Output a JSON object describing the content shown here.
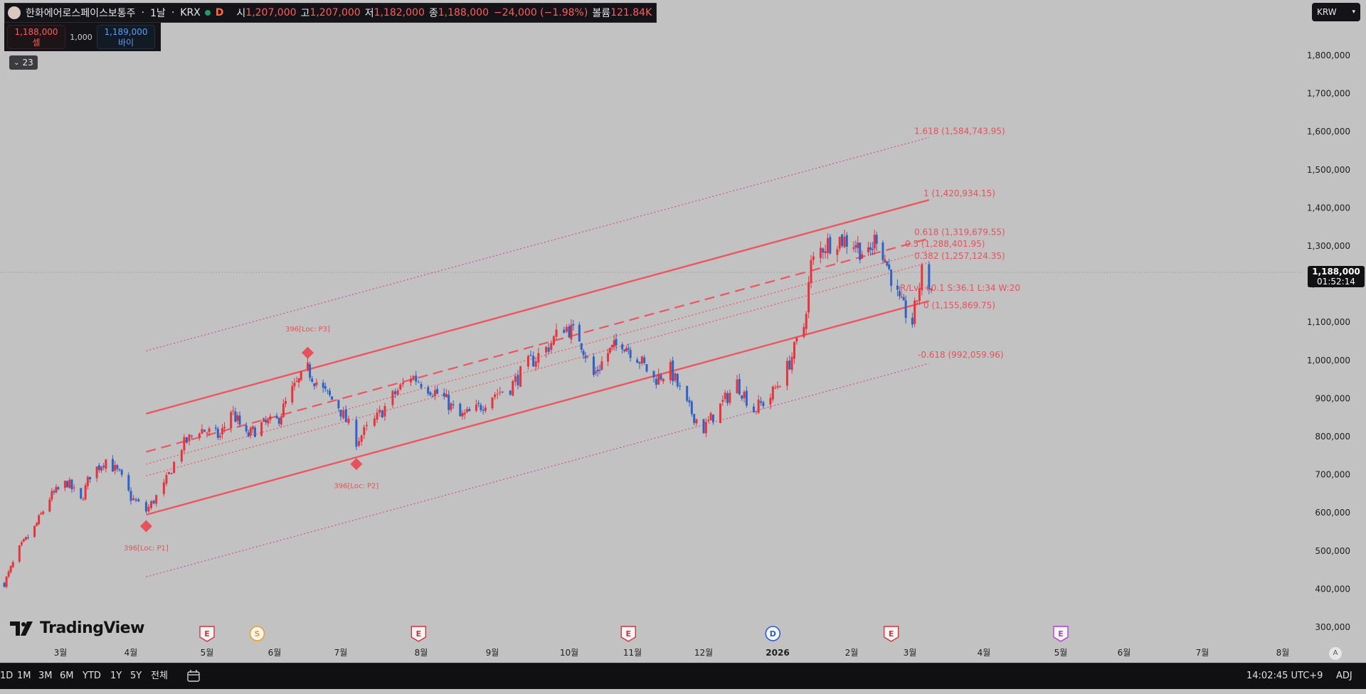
{
  "legend": {
    "symbol": "한화에어로스페이스보통주",
    "interval": "1날",
    "exchange": "KRX",
    "badge": "D",
    "open_label": "시",
    "open": "1,207,000",
    "high_label": "고",
    "high": "1,207,000",
    "low_label": "저",
    "low": "1,182,000",
    "close_label": "종",
    "close": "1,188,000",
    "change": "−24,000 (−1.98%)",
    "volume_label": "볼륨",
    "volume": "121.84K"
  },
  "trade": {
    "sell_price": "1,188,000",
    "sell_label": "셀",
    "spread": "1,000",
    "buy_price": "1,189,000",
    "buy_label": "바이"
  },
  "indicators_collapsed": "23",
  "currency": "KRW",
  "last_price": {
    "value": "1,188,000",
    "countdown": "01:52:14"
  },
  "brand": "TradingView",
  "bottom_bar": {
    "periods": [
      "1D",
      "1M",
      "3M",
      "6M",
      "YTD",
      "1Y",
      "5Y",
      "전체"
    ],
    "clock": "14:02:45 UTC+9",
    "adj": "ADJ",
    "auto": "A"
  },
  "colors": {
    "up": "#e8323c",
    "down": "#2e62c8",
    "channel": "#ef5560",
    "fib_text": "#e8505a",
    "background": "#c2c2c2",
    "marker": "#e8505a"
  },
  "chart_data": {
    "type": "candlestick",
    "symbol": "한화에어로스페이스보통주",
    "ylim": [
      250000,
      1900000
    ],
    "y_ticks": [
      300000,
      400000,
      500000,
      600000,
      700000,
      800000,
      900000,
      1000000,
      1100000,
      1200000,
      1300000,
      1400000,
      1500000,
      1600000,
      1700000,
      1800000
    ],
    "y_tick_labels": [
      "300,000",
      "400,000",
      "500,000",
      "600,000",
      "700,000",
      "800,000",
      "900,000",
      "1,000,000",
      "1,100,000",
      "1,200,000",
      "1,300,000",
      "1,400,000",
      "1,500,000",
      "1,600,000",
      "1,700,000",
      "1,800,000"
    ],
    "x_labels": [
      "3월",
      "4월",
      "5월",
      "6월",
      "7월",
      "8월",
      "9월",
      "10월",
      "11월",
      "12월",
      "2026",
      "2월",
      "3월",
      "4월",
      "5월",
      "6월",
      "7월",
      "8월"
    ],
    "x_label_dates": [
      "2025-03-01",
      "2025-04-01",
      "2025-05-01",
      "2025-06-01",
      "2025-07-01",
      "2025-08-01",
      "2025-09-01",
      "2025-10-01",
      "2025-11-01",
      "2025-12-01",
      "2026-01-01",
      "2026-02-01",
      "2026-03-01",
      "2026-04-01",
      "2026-05-01",
      "2026-06-01",
      "2026-07-01",
      "2026-08-01"
    ],
    "x_range": [
      "2025-02-03",
      "2026-08-28"
    ],
    "last_close": 1188000,
    "close_path": [
      {
        "date": "2025-02-03",
        "close": 415000
      },
      {
        "date": "2025-02-10",
        "close": 505000
      },
      {
        "date": "2025-02-17",
        "close": 560000
      },
      {
        "date": "2025-02-24",
        "close": 640000
      },
      {
        "date": "2025-03-04",
        "close": 680000
      },
      {
        "date": "2025-03-10",
        "close": 630000
      },
      {
        "date": "2025-03-14",
        "close": 700000
      },
      {
        "date": "2025-03-21",
        "close": 740000
      },
      {
        "date": "2025-03-27",
        "close": 700000
      },
      {
        "date": "2025-04-01",
        "close": 640000
      },
      {
        "date": "2025-04-07",
        "close": 605000
      },
      {
        "date": "2025-04-14",
        "close": 670000
      },
      {
        "date": "2025-04-21",
        "close": 775000
      },
      {
        "date": "2025-04-28",
        "close": 820000
      },
      {
        "date": "2025-05-07",
        "close": 800000
      },
      {
        "date": "2025-05-12",
        "close": 870000
      },
      {
        "date": "2025-05-19",
        "close": 800000
      },
      {
        "date": "2025-05-26",
        "close": 830000
      },
      {
        "date": "2025-06-02",
        "close": 840000
      },
      {
        "date": "2025-06-09",
        "close": 920000
      },
      {
        "date": "2025-06-16",
        "close": 975000
      },
      {
        "date": "2025-06-23",
        "close": 920000
      },
      {
        "date": "2025-06-30",
        "close": 880000
      },
      {
        "date": "2025-07-07",
        "close": 790000
      },
      {
        "date": "2025-07-14",
        "close": 840000
      },
      {
        "date": "2025-07-21",
        "close": 905000
      },
      {
        "date": "2025-07-28",
        "close": 960000
      },
      {
        "date": "2025-08-04",
        "close": 930000
      },
      {
        "date": "2025-08-11",
        "close": 900000
      },
      {
        "date": "2025-08-18",
        "close": 850000
      },
      {
        "date": "2025-08-25",
        "close": 870000
      },
      {
        "date": "2025-09-01",
        "close": 910000
      },
      {
        "date": "2025-09-08",
        "close": 930000
      },
      {
        "date": "2025-09-15",
        "close": 990000
      },
      {
        "date": "2025-09-22",
        "close": 1030000
      },
      {
        "date": "2025-09-29",
        "close": 1090000
      },
      {
        "date": "2025-10-06",
        "close": 1060000
      },
      {
        "date": "2025-10-13",
        "close": 960000
      },
      {
        "date": "2025-10-20",
        "close": 1020000
      },
      {
        "date": "2025-10-27",
        "close": 1050000
      },
      {
        "date": "2025-11-03",
        "close": 1010000
      },
      {
        "date": "2025-11-10",
        "close": 950000
      },
      {
        "date": "2025-11-17",
        "close": 975000
      },
      {
        "date": "2025-11-24",
        "close": 880000
      },
      {
        "date": "2025-12-01",
        "close": 820000
      },
      {
        "date": "2025-12-08",
        "close": 880000
      },
      {
        "date": "2025-12-15",
        "close": 940000
      },
      {
        "date": "2025-12-22",
        "close": 870000
      },
      {
        "date": "2025-12-29",
        "close": 905000
      },
      {
        "date": "2026-01-05",
        "close": 980000
      },
      {
        "date": "2026-01-12",
        "close": 1090000
      },
      {
        "date": "2026-01-15",
        "close": 1250000
      },
      {
        "date": "2026-01-20",
        "close": 1300000
      },
      {
        "date": "2026-01-26",
        "close": 1320000
      },
      {
        "date": "2026-02-02",
        "close": 1310000
      },
      {
        "date": "2026-02-09",
        "close": 1270000
      },
      {
        "date": "2026-02-13",
        "close": 1330000
      },
      {
        "date": "2026-02-20",
        "close": 1220000
      },
      {
        "date": "2026-02-24",
        "close": 1150000
      },
      {
        "date": "2026-03-02",
        "close": 1100000
      },
      {
        "date": "2026-03-06",
        "close": 1230000
      },
      {
        "date": "2026-03-10",
        "close": 1188000
      }
    ],
    "regression_channel": {
      "start_date": "2025-04-07",
      "end_date": "2026-03-09",
      "levels": [
        {
          "label": "1.618 (1,584,743.95)",
          "ratio": 1.618,
          "start": 1025000,
          "end": 1584743.95,
          "style": "dotted"
        },
        {
          "label": "1 (1,420,934.15)",
          "ratio": 1,
          "start": 860000,
          "end": 1420934.15,
          "style": "solid"
        },
        {
          "label": "0.618 (1,319,679.55)",
          "ratio": 0.618,
          "start": 760000,
          "end": 1319679.55,
          "style": "dashed"
        },
        {
          "label": "0.5 (1,288,401.95)",
          "ratio": 0.5,
          "start": 728000,
          "end": 1288401.95,
          "style": "dotted"
        },
        {
          "label": "0.382 (1,257,124.35)",
          "ratio": 0.382,
          "start": 697000,
          "end": 1257124.35,
          "style": "dotted"
        },
        {
          "label": "0 (1,155,869.75)",
          "ratio": 0,
          "start": 595000,
          "end": 1155869.75,
          "style": "solid"
        },
        {
          "label": "-0.618 (992,059.96)",
          "ratio": -0.618,
          "start": 432000,
          "end": 992059.96,
          "style": "dotted"
        }
      ],
      "stats": "R/Lvl:+0.1 S:36.1 L:34 W:20"
    },
    "pivot_markers": [
      {
        "label": "396[Loc: P1]",
        "date": "2025-04-07",
        "price": 565000,
        "label_position": "below"
      },
      {
        "label": "396[Loc: P3]",
        "date": "2025-06-16",
        "price": 1020000,
        "label_position": "above"
      },
      {
        "label": "396[Loc: P2]",
        "date": "2025-07-07",
        "price": 728000,
        "label_position": "below"
      }
    ],
    "events": [
      {
        "type": "E",
        "date": "2025-05-01",
        "color": "#d0343e"
      },
      {
        "type": "S",
        "date": "2025-05-24",
        "color": "#f0a020"
      },
      {
        "type": "E",
        "date": "2025-07-31",
        "color": "#d0343e"
      },
      {
        "type": "E",
        "date": "2025-10-30",
        "color": "#d0343e"
      },
      {
        "type": "D",
        "date": "2025-12-30",
        "color": "#2a5bd6"
      },
      {
        "type": "E",
        "date": "2026-02-20",
        "color": "#d0343e"
      },
      {
        "type": "E",
        "date": "2026-05-01",
        "color": "#b03fd0"
      }
    ]
  }
}
